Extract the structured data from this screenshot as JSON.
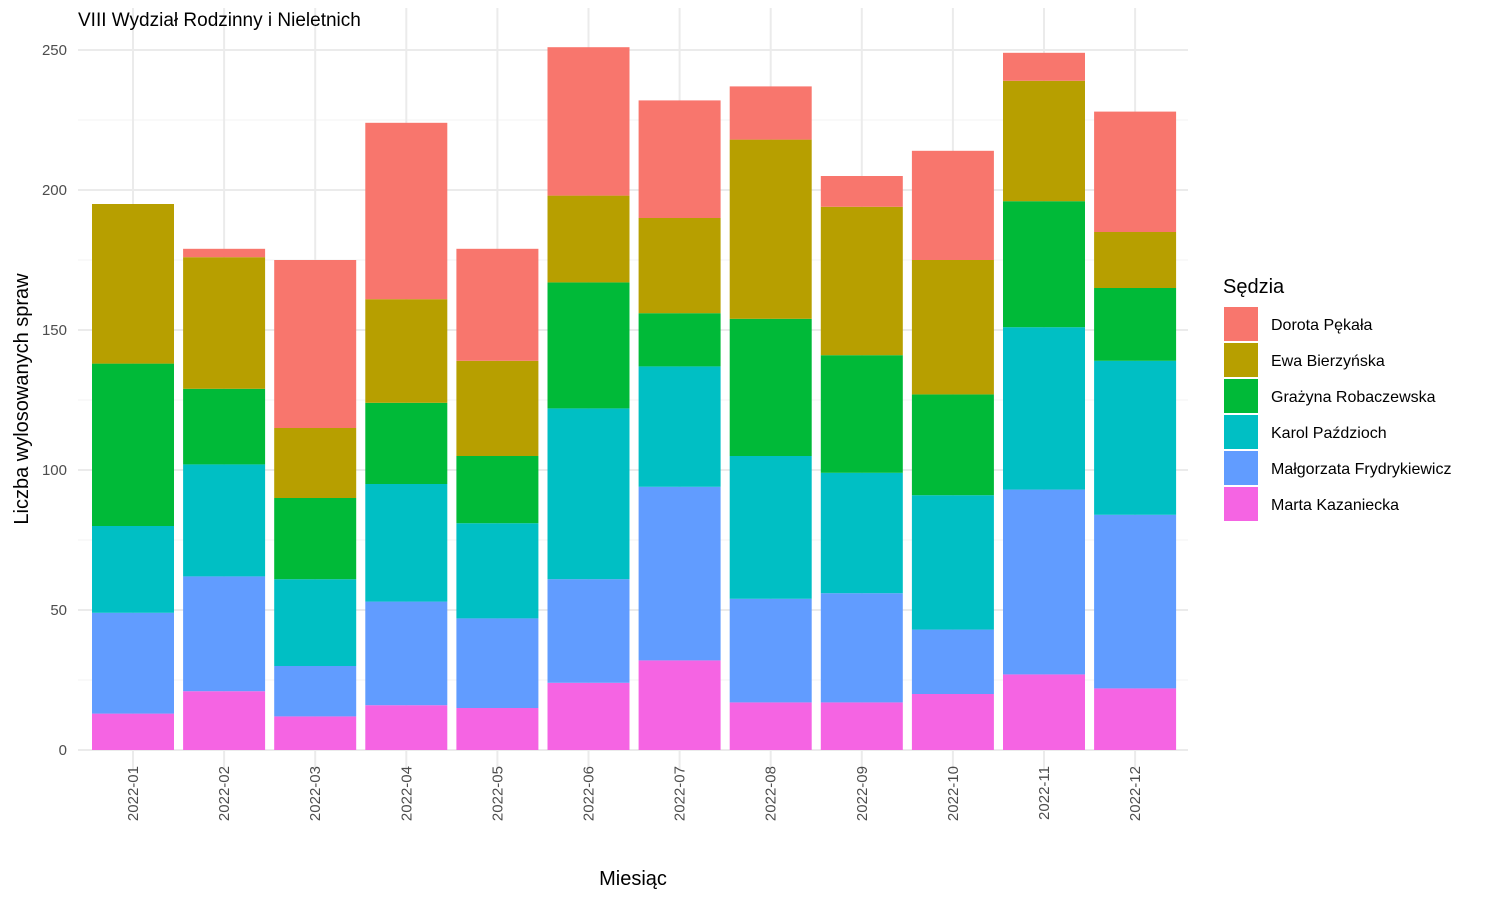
{
  "chart_data": {
    "type": "bar",
    "stacked": true,
    "title": "VIII Wydział Rodzinny i Nieletnich",
    "xlabel": "Miesiąc",
    "ylabel": "Liczba wylosowanych spraw",
    "ylim": [
      0,
      251
    ],
    "yticks": [
      0,
      50,
      100,
      150,
      200,
      250
    ],
    "grid": true,
    "legend": {
      "title": "Sędzia",
      "position": "right"
    },
    "categories": [
      "2022-01",
      "2022-02",
      "2022-03",
      "2022-04",
      "2022-05",
      "2022-06",
      "2022-07",
      "2022-08",
      "2022-09",
      "2022-10",
      "2022-11",
      "2022-12"
    ],
    "series": [
      {
        "name": "Dorota Pękała",
        "color": "#F8766D",
        "values": [
          0,
          3,
          60,
          63,
          40,
          53,
          42,
          19,
          11,
          39,
          10,
          43
        ]
      },
      {
        "name": "Ewa Bierzyńska",
        "color": "#B79F00",
        "values": [
          57,
          47,
          25,
          37,
          34,
          31,
          34,
          64,
          53,
          48,
          43,
          20
        ]
      },
      {
        "name": "Grażyna Robaczewska",
        "color": "#00BA38",
        "values": [
          58,
          27,
          29,
          29,
          24,
          45,
          19,
          49,
          42,
          36,
          45,
          26
        ]
      },
      {
        "name": "Karol Paździoch",
        "color": "#00BFC4",
        "values": [
          31,
          40,
          31,
          42,
          34,
          61,
          43,
          51,
          43,
          48,
          58,
          55
        ]
      },
      {
        "name": "Małgorzata Frydrykiewicz",
        "color": "#619CFF",
        "values": [
          36,
          41,
          18,
          37,
          32,
          37,
          62,
          37,
          39,
          23,
          66,
          62
        ]
      },
      {
        "name": "Marta Kazaniecka",
        "color": "#F564E3",
        "values": [
          13,
          21,
          12,
          16,
          15,
          24,
          32,
          17,
          17,
          20,
          27,
          22
        ]
      }
    ]
  }
}
